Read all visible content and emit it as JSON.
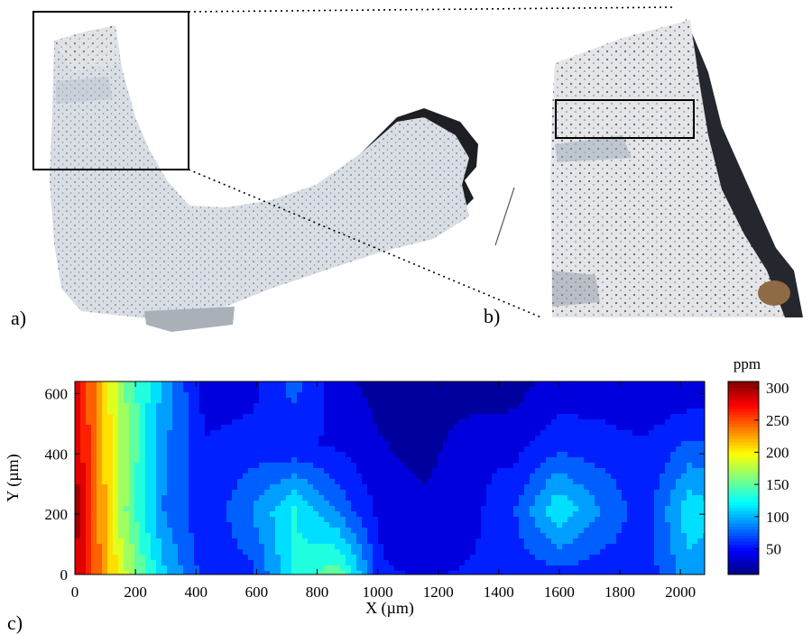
{
  "panels": {
    "a": {
      "label": "a)"
    },
    "b": {
      "label": "b)"
    },
    "c": {
      "label": "c)"
    }
  },
  "chart_data": {
    "type": "heatmap",
    "style": "filled contour",
    "colormap": "jet",
    "xlabel": "X (µm)",
    "ylabel": "Y (µm)",
    "colorbar_label": "ppm",
    "xlim": [
      0,
      2080
    ],
    "ylim": [
      0,
      640
    ],
    "x_ticks": [
      0,
      200,
      400,
      600,
      800,
      1000,
      1200,
      1400,
      1600,
      1800,
      2000
    ],
    "y_ticks": [
      0,
      200,
      400,
      600
    ],
    "colorbar_range": [
      10,
      310
    ],
    "colorbar_ticks": [
      50,
      100,
      150,
      200,
      250,
      300
    ],
    "x": [
      0,
      145,
      290,
      435,
      580,
      725,
      870,
      1015,
      1160,
      1305,
      1450,
      1595,
      1740,
      1885,
      2030,
      2080
    ],
    "y": [
      0,
      213,
      427,
      640
    ],
    "z": [
      [
        290,
        195,
        110,
        55,
        60,
        125,
        155,
        50,
        45,
        50,
        55,
        60,
        55,
        55,
        95,
        90
      ],
      [
        305,
        175,
        85,
        50,
        85,
        125,
        80,
        40,
        35,
        40,
        65,
        120,
        85,
        55,
        120,
        110
      ],
      [
        290,
        180,
        90,
        50,
        55,
        50,
        45,
        30,
        20,
        45,
        40,
        60,
        55,
        50,
        70,
        70
      ],
      [
        285,
        170,
        100,
        35,
        40,
        75,
        35,
        20,
        10,
        10,
        20,
        35,
        35,
        30,
        30,
        30
      ]
    ]
  }
}
